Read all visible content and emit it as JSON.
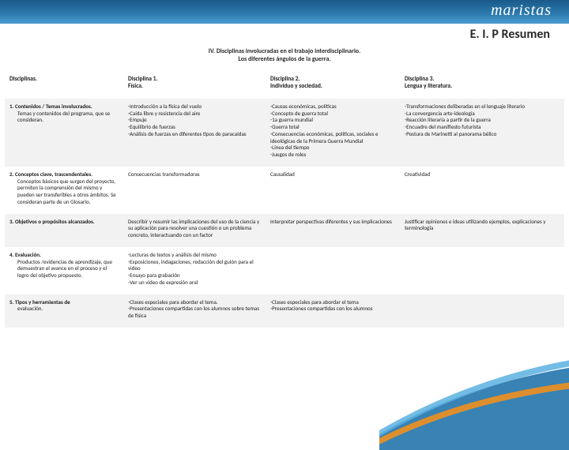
{
  "header": {
    "logo_text": "maristas",
    "title": "E. I. P  Resumen",
    "subtitle_line1": "IV. Disciplinas involucradas en el  trabajo interdisciplinario.",
    "subtitle_line2": "Los diferentes ángulos de la guerra."
  },
  "colors": {
    "bar_gradient_top": "#1a5a8a",
    "bar_gradient_bottom": "#4a9dd0",
    "text": "#1a1a1a",
    "alt_row_bg": "#f2f2f2",
    "swoosh_main": "#2d7bb0",
    "swoosh_accent": "#f0901e"
  },
  "table": {
    "head": {
      "c0": "Disciplinas.",
      "c1a": "Disciplina 1.",
      "c1b": "Física.",
      "c2a": "Disciplina 2.",
      "c2b": "Individuo y sociedad.",
      "c3a": "Disciplina 3.",
      "c3b": "Lengua y literatura."
    },
    "rows": [
      {
        "alt": true,
        "label_main": "1. Contenidos / Temas involucrados.",
        "label_sub": "Temas y contenidos  del programa, que se consideran.",
        "c1": "-Introducción a la física del vuelo\n-Caída libre y resistencia del aire\n-Empuje\n-Equilibrio de fuerzas\n-Análisis de fuerzas en diferentes tipos de paracaídas",
        "c2": "-Causas económicas, políticas\n-Concepto de guerra total\n-1a guerra mundial\n-Guerra total\n-Consecuencias económicas, políticas, sociales e ideológicas de la Primera Guerra Mundial\n-Línea del tiempo\n-Juegos de roles",
        "c3": "-Transformaciones deliberadas en el lenguaje literario\n-La convergencia arte-ideología\n-Reacción literaria a partir de la guerra\n-Encuadre del manifiesto futurista\n-Postura de Marinetti al panorama bélico"
      },
      {
        "alt": false,
        "label_main": "2. Conceptos clave, trascendentales.",
        "label_sub": "Conceptos básicos que surgen del proyecto,  permiten la comprensión del mismo y  pueden ser transferibles a otros ámbitos.\nSe consideran parte de un Glosario.",
        "c1": "Consecuencias transformadoras",
        "c2": "Causalidad",
        "c3": "Creatividad"
      },
      {
        "alt": true,
        "label_main": "3. Objetivos o propósitos alcanzados.",
        "label_sub": "",
        "c1": "Describir y resumir las implicaciones del uso de la ciencia y su aplicación para resolver una cuestión o un problema concreto, interactuando con un factor",
        "c2": "Interpretar perspectivas diferentes y sus implicaciones",
        "c3": "Justificar opiniones e ideas utilizando ejemplos, explicaciones y terminología"
      },
      {
        "alt": false,
        "label_main": "4. Evaluación.",
        "label_sub": "Productos /evidencias de aprendizaje, que demuestran el avance en el proceso y el logro del objetivo propuesto.",
        "c1": "-Lecturas de textos y análisis del mismo\n-Exposiciones, indagaciones, redacción del guión para el video\n-Ensayo para grabación\n-Ver un video de expresión oral",
        "c2": "",
        "c3": ""
      },
      {
        "alt": true,
        "label_main": "5. Tipos y herramientas de",
        "label_sub": "evaluación.",
        "c1": "-Clases especiales para abordar el tema.\n-Presentaciones compartidas con los alumnos sobre temas de física",
        "c2": "-Clases especiales para abordar el tema\n-Presentaciones compartidas con los alumnos",
        "c3": ""
      }
    ]
  }
}
